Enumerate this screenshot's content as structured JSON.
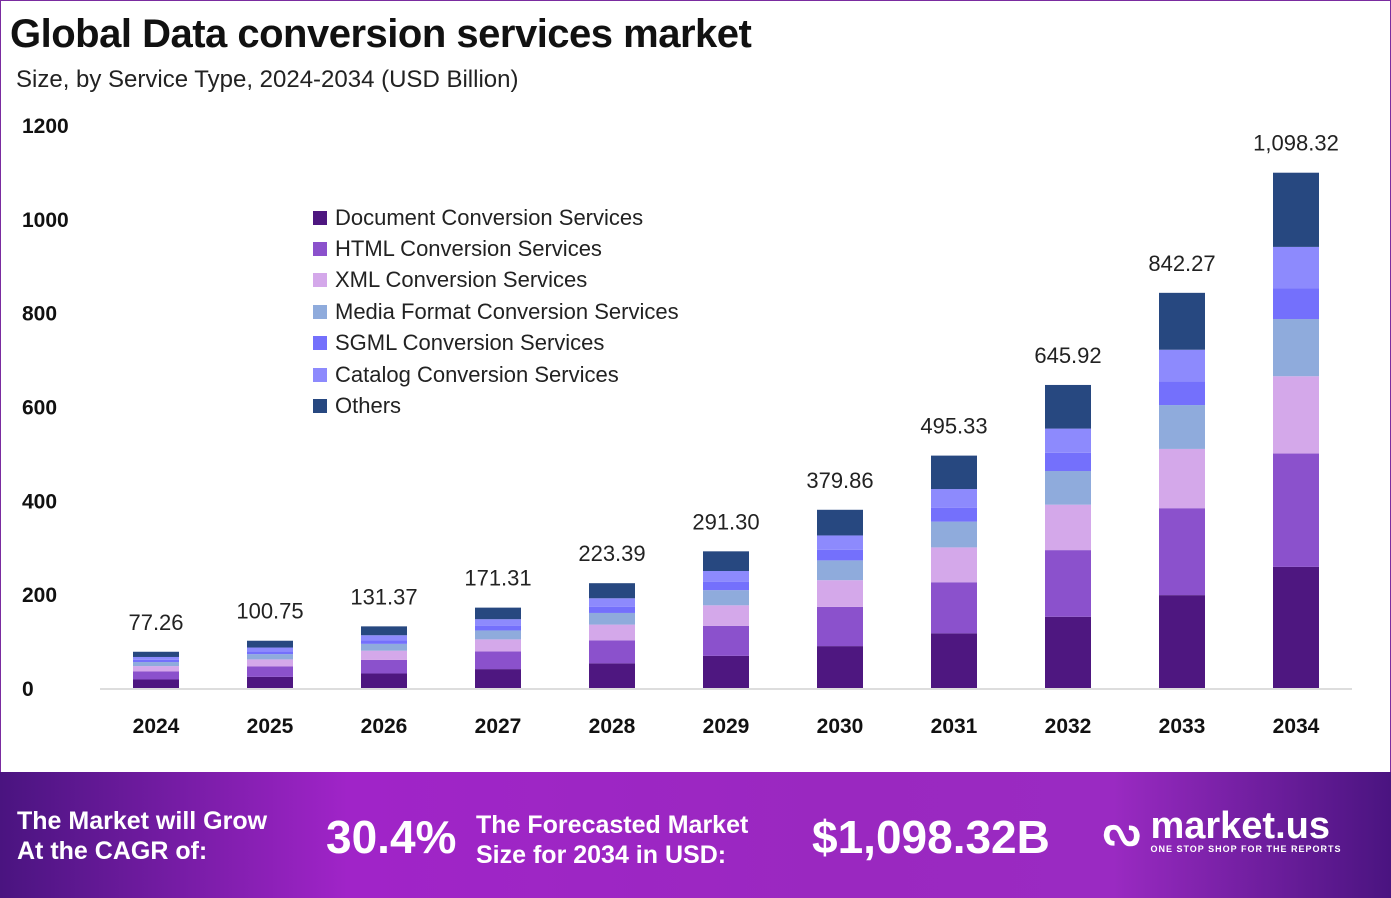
{
  "title": "Global Data conversion services market",
  "subtitle": "Size, by Service Type, 2024-2034 (USD Billion)",
  "chart_data": {
    "type": "bar",
    "stacked": true,
    "title": "Global Data conversion services market",
    "xlabel": "",
    "ylabel": "USD Billion",
    "ylim": [
      0,
      1200
    ],
    "yticks": [
      "0",
      "200",
      "400",
      "600",
      "800",
      "1000",
      "1200"
    ],
    "categories": [
      "2024",
      "2025",
      "2026",
      "2027",
      "2028",
      "2029",
      "2030",
      "2031",
      "2032",
      "2033",
      "2034"
    ],
    "totals": [
      77.26,
      100.75,
      131.37,
      171.31,
      223.39,
      291.3,
      379.86,
      495.33,
      645.92,
      842.27,
      1098.32
    ],
    "total_labels": [
      "77.26",
      "100.75",
      "131.37",
      "171.31",
      "223.39",
      "291.30",
      "379.86",
      "495.33",
      "645.92",
      "842.27",
      "1,098.32"
    ],
    "series": [
      {
        "name": "Document Conversion Services",
        "color": "#4e1780",
        "share": 0.235
      },
      {
        "name": "HTML Conversion Services",
        "color": "#8b51cc",
        "share": 0.22
      },
      {
        "name": "XML Conversion Services",
        "color": "#d4a8ea",
        "share": 0.15
      },
      {
        "name": "Media Format Conversion Services",
        "color": "#8fabdc",
        "share": 0.111
      },
      {
        "name": "SGML Conversion Services",
        "color": "#7470fc",
        "share": 0.06
      },
      {
        "name": "Catalog Conversion Services",
        "color": "#8d8afd",
        "share": 0.08
      },
      {
        "name": "Others",
        "color": "#274880",
        "share": 0.144
      }
    ],
    "legend_position": "top-left",
    "grid": false
  },
  "footer": {
    "cagr_line1": "The Market will Grow",
    "cagr_line2": "At the CAGR of:",
    "cagr_value": "30.4%",
    "forecast_line1": "The Forecasted Market",
    "forecast_line2": "Size for 2034 in USD:",
    "forecast_value": "$1,098.32B",
    "brand": "market.us",
    "tagline": "ONE STOP SHOP FOR THE REPORTS"
  }
}
